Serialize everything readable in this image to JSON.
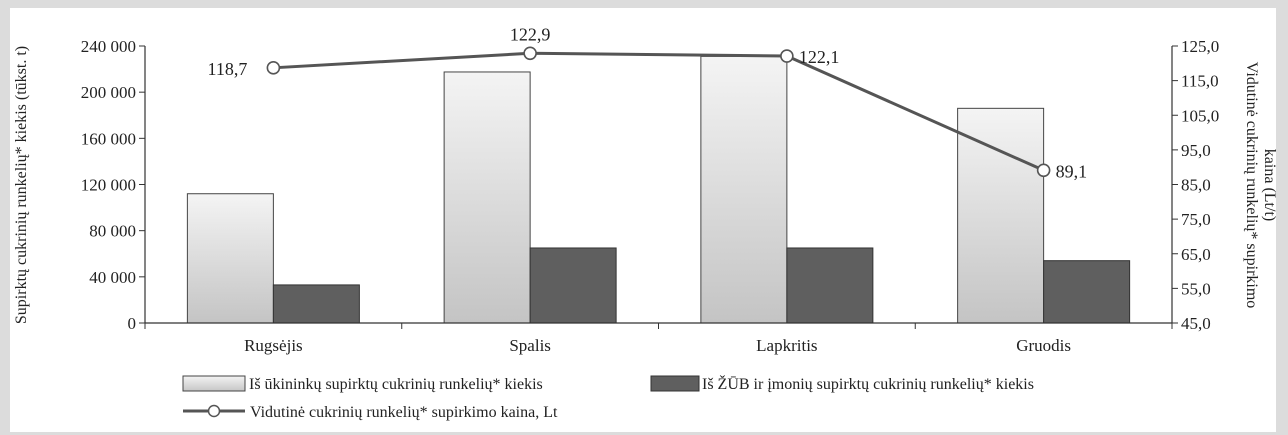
{
  "chart_data": {
    "type": "bar",
    "categories": [
      "Rugsėjis",
      "Spalis",
      "Lapkritis",
      "Gruodis"
    ],
    "series": [
      {
        "name": "Iš ūkininkų supirktų cukrinių runkelių* kiekis",
        "kind": "bar",
        "axis": "left",
        "color": "#d4d4d4",
        "values": [
          112000,
          217500,
          231000,
          186000
        ]
      },
      {
        "name": "Iš ŽŪB ir įmonių supirktų cukrinių runkelių* kiekis",
        "kind": "bar",
        "axis": "left",
        "color": "#5f5f5f",
        "values": [
          33000,
          65000,
          65000,
          54000
        ]
      },
      {
        "name": "Vidutinė cukrinių runkelių* supirkimo kaina, Lt",
        "kind": "line",
        "axis": "right",
        "color": "#555555",
        "values": [
          118.7,
          122.9,
          122.1,
          89.1
        ],
        "labels": [
          "118,7",
          "122,9",
          "122,1",
          "89,1"
        ]
      }
    ],
    "y_left": {
      "label": "Supirktų cukrinių runkelių* kiekis (tūkst. t)",
      "min": 0,
      "max": 240000,
      "ticks": [
        0,
        40000,
        80000,
        120000,
        160000,
        200000,
        240000
      ],
      "tick_labels": [
        "0",
        "40 000",
        "80 000",
        "120 000",
        "160 000",
        "200 000",
        "240 000"
      ]
    },
    "y_right": {
      "label_line1": "Vidutinė cukrinių runkelių* supirkimo",
      "label_line2": "kaina (Lt/t)",
      "min": 45,
      "max": 125,
      "ticks": [
        45,
        55,
        65,
        75,
        85,
        95,
        105,
        115,
        125
      ],
      "tick_labels": [
        "45,0",
        "55,0",
        "65,0",
        "75,0",
        "85,0",
        "95,0",
        "105,0",
        "115,0",
        "125,0"
      ]
    },
    "grid": false,
    "legend_position": "bottom"
  }
}
